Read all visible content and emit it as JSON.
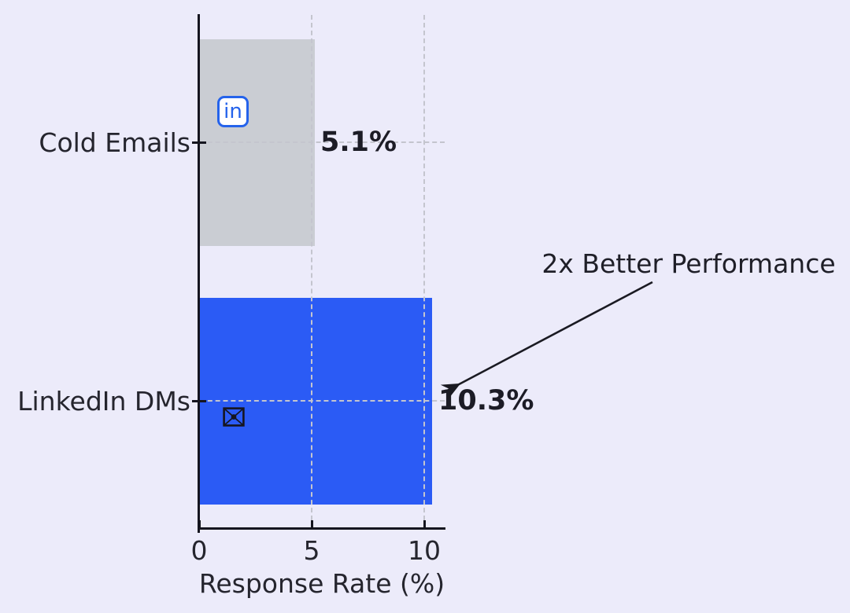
{
  "chart_data": {
    "type": "bar",
    "orientation": "horizontal",
    "categories": [
      "Cold Emails",
      "LinkedIn DMs"
    ],
    "values": [
      5.1,
      10.3
    ],
    "value_labels": [
      "5.1%",
      "10.3%"
    ],
    "xlabel": "Response Rate (%)",
    "x_ticks": [
      "0",
      "5",
      "10"
    ],
    "x_tick_values": [
      0,
      5,
      10
    ],
    "xlim": [
      0,
      10.9
    ],
    "grid": "dashed",
    "legend_position": "none",
    "bar_colors": [
      "#CACDD3",
      "#2B5BF5"
    ],
    "background_color": "#ECEBFA",
    "annotation": {
      "text": "2x Better Performance",
      "points_to_value": 10.3
    },
    "icons": [
      {
        "name": "linkedin-icon",
        "glyph": "in",
        "on_bar": "Cold Emails"
      },
      {
        "name": "envelope-icon",
        "glyph": "envelope",
        "on_bar": "LinkedIn DMs"
      }
    ]
  }
}
